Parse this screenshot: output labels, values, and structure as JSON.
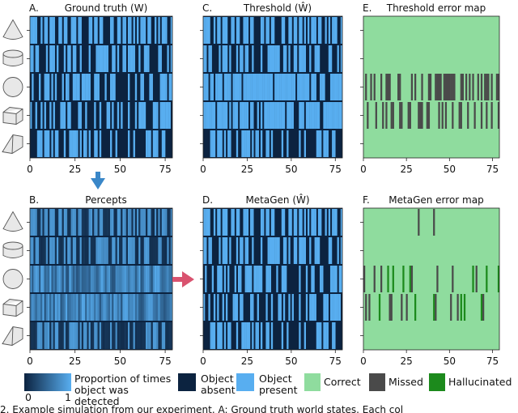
{
  "chart_data": [
    {
      "type": "heatmap",
      "panel": "A.",
      "title": "Ground truth (W)",
      "kind": "binary",
      "rows": 5,
      "cols": 80,
      "xticks": [
        0,
        25,
        50,
        75
      ],
      "xlim": [
        0,
        79
      ],
      "seed": 11,
      "density": 0.5,
      "boost_rows": [],
      "miss_rows": [],
      "hall_rows": []
    },
    {
      "type": "heatmap",
      "panel": "C.",
      "title": "Threshold (Ŵ)",
      "kind": "binary",
      "rows": 5,
      "cols": 80,
      "xticks": [
        0,
        25,
        50,
        75
      ],
      "xlim": [
        0,
        79
      ],
      "seed": 11,
      "density": 0.5,
      "boost_rows": [
        2,
        3
      ],
      "miss_rows": [],
      "hall_rows": []
    },
    {
      "type": "heatmap",
      "panel": "E.",
      "title": "Threshold error map",
      "kind": "error",
      "rows": 5,
      "cols": 80,
      "xticks": [
        0,
        25,
        50,
        75
      ],
      "xlim": [
        0,
        79
      ],
      "seed": 23,
      "density": 0.0,
      "boost_rows": [],
      "miss_rows": [
        2,
        3
      ],
      "hall_rows": []
    },
    {
      "type": "heatmap",
      "panel": "B.",
      "title": "Percepts",
      "kind": "continuous",
      "rows": 5,
      "cols": 80,
      "xticks": [
        0,
        25,
        50,
        75
      ],
      "xlim": [
        0,
        79
      ],
      "seed": 11,
      "density": 0.5,
      "boost_rows": [
        2,
        3
      ],
      "miss_rows": [],
      "hall_rows": []
    },
    {
      "type": "heatmap",
      "panel": "D.",
      "title": "MetaGen (Ŵ)",
      "kind": "binary",
      "rows": 5,
      "cols": 80,
      "xticks": [
        0,
        25,
        50,
        75
      ],
      "xlim": [
        0,
        79
      ],
      "seed": 11,
      "density": 0.5,
      "boost_rows": [],
      "miss_rows": [],
      "hall_rows": []
    },
    {
      "type": "heatmap",
      "panel": "F.",
      "title": "MetaGen error map",
      "kind": "error",
      "rows": 5,
      "cols": 80,
      "xticks": [
        0,
        25,
        50,
        75
      ],
      "xlim": [
        0,
        79
      ],
      "seed": 37,
      "density": 0.0,
      "boost_rows": [],
      "miss_rows": [
        0,
        2,
        3
      ],
      "hall_rows": [
        2,
        3
      ]
    }
  ],
  "row_objects": [
    "cone",
    "cylinder",
    "sphere",
    "cube",
    "wedge"
  ],
  "colors": {
    "absent": "#0c2340",
    "present": "#58aef0",
    "correct": "#8fdc9e",
    "missed": "#4a4a4a",
    "hallucinated": "#1c8a1c",
    "arrow_down": "#3a87c8",
    "arrow_right": "#d9536f"
  },
  "legend": {
    "gradient_label": "Proportion of times object was detected",
    "gradient_min": "0",
    "gradient_max": "1",
    "absent_label": "Object absent",
    "present_label": "Object present",
    "correct_label": "Correct",
    "missed_label": "Missed",
    "hallucinated_label": "Hallucinated"
  },
  "caption": "2. Example simulation from our experiment. A: Ground truth world states. Each col"
}
